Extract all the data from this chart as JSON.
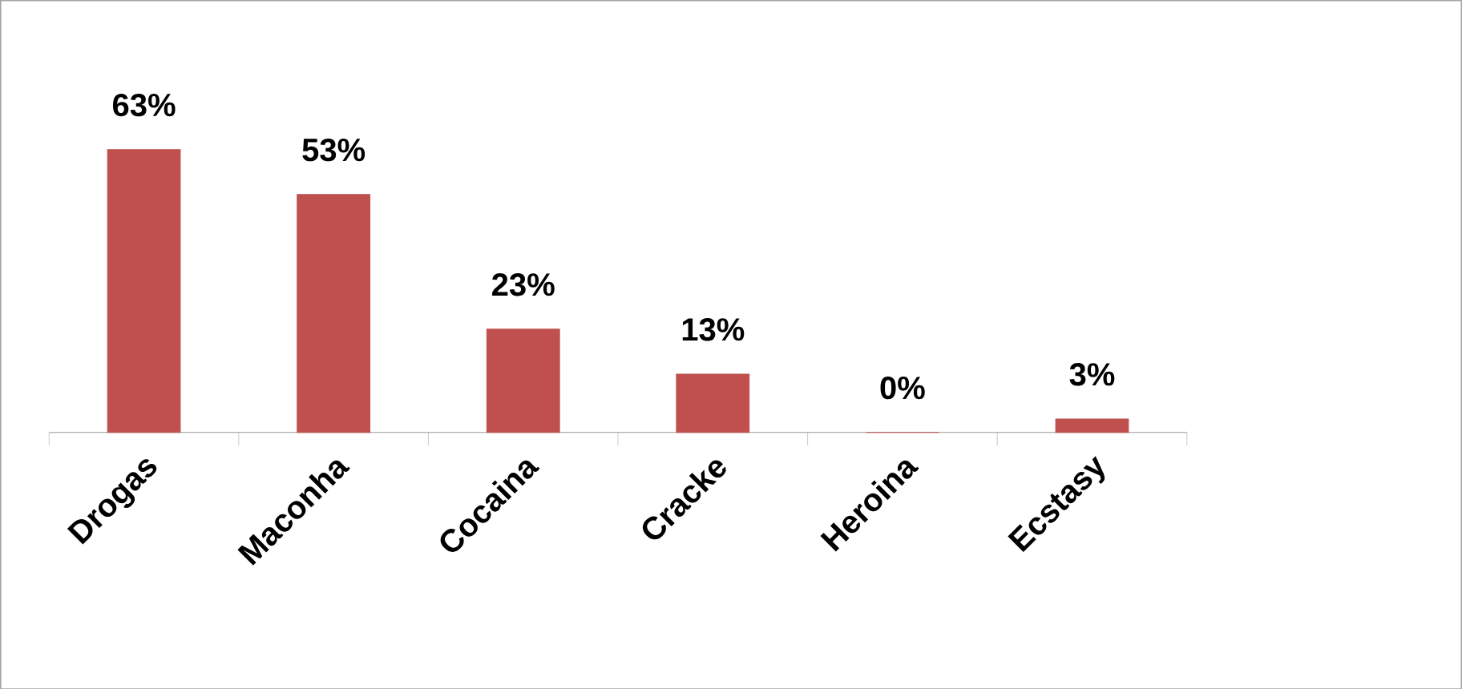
{
  "chart_data": {
    "type": "bar",
    "categories": [
      "Drogas",
      "Maconha",
      "Cocaina",
      "Cracke",
      "Heroina",
      "Ecstasy"
    ],
    "values": [
      63,
      53,
      23,
      13,
      0,
      3
    ],
    "value_labels": [
      "63%",
      "53%",
      "23%",
      "13%",
      "0%",
      "3%"
    ],
    "color": "#c0504d"
  }
}
